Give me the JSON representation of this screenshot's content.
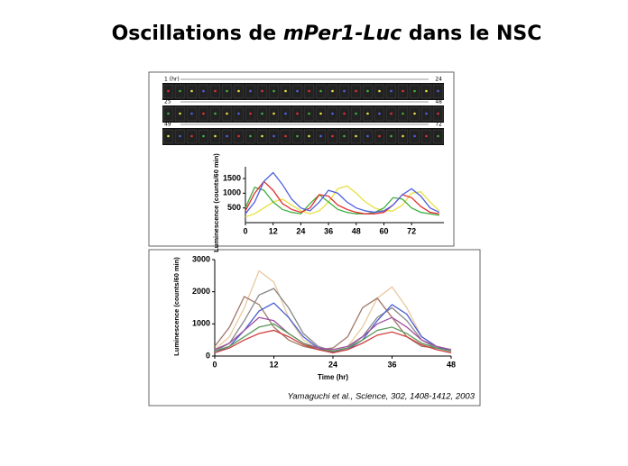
{
  "slide": {
    "title_parts": [
      "Oscillations de ",
      "mPer1-Luc",
      " dans le NSC"
    ],
    "strip_labels": [
      "1 (hr)",
      "24",
      "25",
      "48",
      "49",
      "72"
    ],
    "citation": "Yamaguchi et al., Science, 302, 1408-1412, 2003"
  },
  "chart_data": [
    {
      "type": "line",
      "ylabel": "Luminescence (counts/60 min)",
      "x": [
        0,
        4,
        8,
        12,
        16,
        20,
        24,
        28,
        32,
        36,
        40,
        44,
        48,
        52,
        56,
        60,
        64,
        68,
        72,
        76,
        80,
        84
      ],
      "xlim": [
        0,
        86
      ],
      "ylim": [
        0,
        1900
      ],
      "xticks": [
        0,
        12,
        24,
        36,
        48,
        60,
        72
      ],
      "yticks": [
        500,
        1000,
        1500
      ],
      "series": [
        {
          "color": "#e8e040",
          "values": [
            200,
            300,
            500,
            700,
            800,
            600,
            400,
            300,
            400,
            700,
            1150,
            1250,
            1000,
            700,
            500,
            400,
            400,
            600,
            1000,
            1050,
            700,
            400
          ]
        },
        {
          "color": "#40b040",
          "values": [
            500,
            1200,
            1100,
            700,
            450,
            350,
            300,
            650,
            950,
            700,
            450,
            350,
            300,
            300,
            350,
            500,
            850,
            800,
            500,
            350,
            300,
            250
          ]
        },
        {
          "color": "#e03030",
          "values": [
            400,
            1000,
            1400,
            1100,
            650,
            450,
            350,
            500,
            950,
            900,
            600,
            450,
            350,
            300,
            300,
            350,
            600,
            950,
            850,
            550,
            350,
            300
          ]
        },
        {
          "color": "#5060e0",
          "values": [
            300,
            700,
            1400,
            1700,
            1300,
            800,
            500,
            400,
            700,
            1100,
            1000,
            700,
            500,
            400,
            350,
            400,
            600,
            950,
            1150,
            900,
            500,
            350
          ]
        }
      ]
    },
    {
      "type": "line",
      "ylabel": "Luminescence (counts/60 min)",
      "xlabel": "Time (hr)",
      "x": [
        0,
        3,
        6,
        9,
        12,
        15,
        18,
        21,
        24,
        27,
        30,
        33,
        36,
        39,
        42,
        45,
        48
      ],
      "xlim": [
        0,
        48
      ],
      "ylim": [
        0,
        3000
      ],
      "xticks": [
        0,
        12,
        24,
        36,
        48
      ],
      "yticks": [
        0,
        1000,
        2000,
        3000
      ],
      "series": [
        {
          "color": "#e8c9a0",
          "values": [
            200,
            600,
            1500,
            2650,
            2300,
            1200,
            500,
            250,
            200,
            300,
            900,
            1800,
            2150,
            1500,
            600,
            300,
            200
          ]
        },
        {
          "color": "#a0786a",
          "values": [
            300,
            900,
            1850,
            1600,
            900,
            500,
            300,
            200,
            250,
            600,
            1500,
            1800,
            1200,
            600,
            300,
            250,
            200
          ]
        },
        {
          "color": "#888888",
          "values": [
            150,
            400,
            1100,
            1900,
            2100,
            1500,
            700,
            300,
            150,
            250,
            600,
            1200,
            1500,
            1100,
            500,
            250,
            150
          ]
        },
        {
          "color": "#4a5fd0",
          "values": [
            100,
            300,
            800,
            1400,
            1650,
            1200,
            600,
            250,
            120,
            200,
            500,
            1100,
            1600,
            1300,
            600,
            300,
            150
          ]
        },
        {
          "color": "#a050a0",
          "values": [
            200,
            400,
            800,
            1200,
            1100,
            700,
            400,
            250,
            200,
            300,
            600,
            1000,
            1200,
            900,
            500,
            300,
            200
          ]
        },
        {
          "color": "#5a9a5a",
          "values": [
            150,
            300,
            600,
            900,
            1000,
            700,
            400,
            200,
            150,
            250,
            500,
            800,
            900,
            700,
            400,
            250,
            150
          ]
        },
        {
          "color": "#d04040",
          "values": [
            100,
            250,
            500,
            700,
            800,
            600,
            350,
            200,
            100,
            200,
            400,
            650,
            750,
            600,
            350,
            200,
            100
          ]
        }
      ]
    }
  ]
}
